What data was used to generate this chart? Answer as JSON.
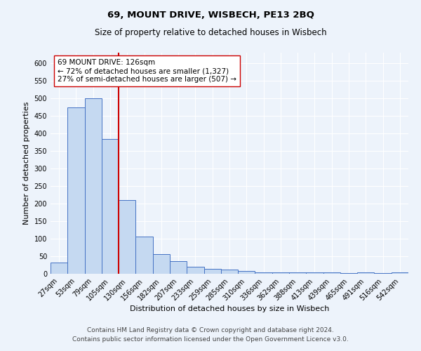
{
  "title": "69, MOUNT DRIVE, WISBECH, PE13 2BQ",
  "subtitle": "Size of property relative to detached houses in Wisbech",
  "xlabel": "Distribution of detached houses by size in Wisbech",
  "ylabel": "Number of detached properties",
  "categories": [
    "27sqm",
    "53sqm",
    "79sqm",
    "105sqm",
    "130sqm",
    "156sqm",
    "182sqm",
    "207sqm",
    "233sqm",
    "259sqm",
    "285sqm",
    "310sqm",
    "336sqm",
    "362sqm",
    "388sqm",
    "413sqm",
    "439sqm",
    "465sqm",
    "491sqm",
    "516sqm",
    "542sqm"
  ],
  "values": [
    32,
    475,
    500,
    385,
    210,
    107,
    57,
    37,
    21,
    14,
    12,
    9,
    5,
    5,
    4,
    4,
    4,
    3,
    4,
    3,
    5
  ],
  "bar_color": "#c5d9f1",
  "bar_edge_color": "#4472c4",
  "bar_width": 1.0,
  "vline_x": 3.5,
  "vline_color": "#cc0000",
  "ylim": [
    0,
    630
  ],
  "yticks": [
    0,
    50,
    100,
    150,
    200,
    250,
    300,
    350,
    400,
    450,
    500,
    550,
    600
  ],
  "annotation_line1": "69 MOUNT DRIVE: 126sqm",
  "annotation_line2": "← 72% of detached houses are smaller (1,327)",
  "annotation_line3": "27% of semi-detached houses are larger (507) →",
  "annotation_box_color": "#ffffff",
  "annotation_box_edge": "#cc0000",
  "footer_line1": "Contains HM Land Registry data © Crown copyright and database right 2024.",
  "footer_line2": "Contains public sector information licensed under the Open Government Licence v3.0.",
  "bg_color": "#edf3fb",
  "title_fontsize": 9.5,
  "subtitle_fontsize": 8.5,
  "axis_label_fontsize": 8,
  "tick_fontsize": 7,
  "annotation_fontsize": 7.5,
  "footer_fontsize": 6.5
}
